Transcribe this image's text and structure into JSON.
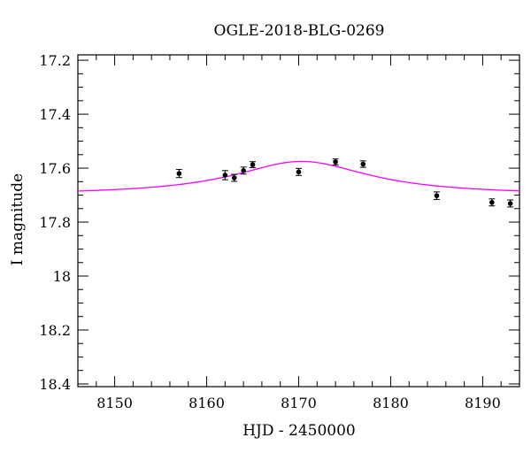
{
  "chart_data": {
    "type": "scatter",
    "title": "OGLE-2018-BLG-0269",
    "xlabel": "HJD - 2450000",
    "ylabel": "I magnitude",
    "xlim": [
      8146,
      8194
    ],
    "ylim": [
      17.18,
      18.41
    ],
    "y_inverted": true,
    "x_ticks": [
      8150,
      8160,
      8170,
      8180,
      8190
    ],
    "y_ticks": [
      17.2,
      17.4,
      17.6,
      17.8,
      18,
      18.2,
      18.4
    ],
    "y_tick_labels": [
      "17.2",
      "17.4",
      "17.6",
      "17.8",
      "18",
      "18.2",
      "18.4"
    ],
    "grid": false,
    "series": [
      {
        "kind": "points",
        "color": "#000000",
        "points": [
          {
            "x": 8157.0,
            "y": 17.62,
            "err": 0.015
          },
          {
            "x": 8162.0,
            "y": 17.626,
            "err": 0.017
          },
          {
            "x": 8163.0,
            "y": 17.636,
            "err": 0.013
          },
          {
            "x": 8164.0,
            "y": 17.609,
            "err": 0.013
          },
          {
            "x": 8165.0,
            "y": 17.587,
            "err": 0.011
          },
          {
            "x": 8170.0,
            "y": 17.614,
            "err": 0.013
          },
          {
            "x": 8174.0,
            "y": 17.577,
            "err": 0.011
          },
          {
            "x": 8177.0,
            "y": 17.585,
            "err": 0.012
          },
          {
            "x": 8185.0,
            "y": 17.702,
            "err": 0.014
          },
          {
            "x": 8191.0,
            "y": 17.727,
            "err": 0.013
          },
          {
            "x": 8193.0,
            "y": 17.731,
            "err": 0.013
          }
        ]
      },
      {
        "kind": "model",
        "color": "#ff00ff",
        "baseline": 17.7,
        "peak_x": 8170.3,
        "peak_y": 17.575,
        "width": 9.0
      }
    ]
  }
}
